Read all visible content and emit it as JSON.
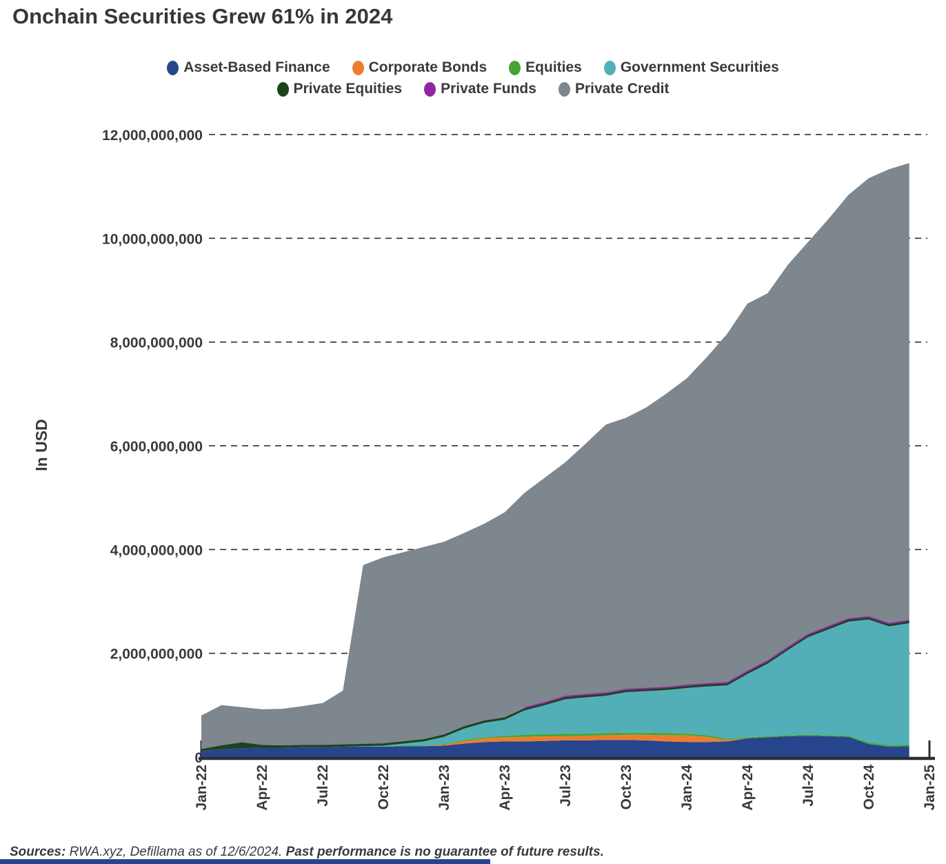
{
  "title": "Onchain Securities Grew 61% in 2024",
  "legend": {
    "rows": [
      [
        {
          "label": "Asset-Based Finance",
          "color": "#26458c"
        },
        {
          "label": "Corporate Bonds",
          "color": "#ec7d2e"
        },
        {
          "label": "Equities",
          "color": "#44a42f"
        },
        {
          "label": "Government Securities",
          "color": "#52afb8"
        }
      ],
      [
        {
          "label": "Private Equities",
          "color": "#1d431e"
        },
        {
          "label": "Private Funds",
          "color": "#8f27a0"
        },
        {
          "label": "Private Credit",
          "color": "#7e868e"
        }
      ]
    ]
  },
  "y_axis": {
    "title": "In USD",
    "tick_values_billions": [
      0,
      2,
      4,
      6,
      8,
      10,
      12
    ],
    "tick_labels": [
      "0",
      "2,000,000,000",
      "4,000,000,000",
      "6,000,000,000",
      "8,000,000,000",
      "10,000,000,000",
      "12,000,000,000"
    ]
  },
  "x_axis": {
    "tick_labels": [
      "Jan-22",
      "Apr-22",
      "Jul-22",
      "Oct-22",
      "Jan-23",
      "Apr-23",
      "Jul-23",
      "Oct-23",
      "Jan-24",
      "Apr-24",
      "Jul-24",
      "Oct-24",
      "Jan-25"
    ]
  },
  "footer": {
    "sources_label": "Sources:",
    "sources_text": " RWA.xyz, Defillama as of 12/6/2024. ",
    "disclaimer": "Past performance is no guarantee of future results."
  },
  "chart_data": {
    "type": "area",
    "stacked": true,
    "unit": "USD billions",
    "title": "Onchain Securities Grew 61% in 2024",
    "ylabel": "In USD",
    "ylim_billions": [
      0,
      12
    ],
    "grid": "horizontal-dashed",
    "legend_position": "top-center",
    "x": [
      "Jan-22",
      "Feb-22",
      "Mar-22",
      "Apr-22",
      "May-22",
      "Jun-22",
      "Jul-22",
      "Aug-22",
      "Sep-22",
      "Oct-22",
      "Nov-22",
      "Dec-22",
      "Jan-23",
      "Feb-23",
      "Mar-23",
      "Apr-23",
      "May-23",
      "Jun-23",
      "Jul-23",
      "Aug-23",
      "Sep-23",
      "Oct-23",
      "Nov-23",
      "Dec-23",
      "Jan-24",
      "Feb-24",
      "Mar-24",
      "Apr-24",
      "May-24",
      "Jun-24",
      "Jul-24",
      "Aug-24",
      "Sep-24",
      "Oct-24",
      "Nov-24",
      "Dec-24"
    ],
    "series": [
      {
        "name": "Asset-Based Finance",
        "color": "#26458c",
        "outline": false,
        "values": [
          0.12,
          0.15,
          0.17,
          0.18,
          0.18,
          0.19,
          0.19,
          0.2,
          0.2,
          0.2,
          0.21,
          0.21,
          0.22,
          0.26,
          0.29,
          0.3,
          0.3,
          0.31,
          0.32,
          0.32,
          0.33,
          0.33,
          0.32,
          0.3,
          0.29,
          0.29,
          0.3,
          0.36,
          0.38,
          0.4,
          0.41,
          0.4,
          0.39,
          0.25,
          0.2,
          0.21
        ]
      },
      {
        "name": "Corporate Bonds",
        "color": "#ec7d2e",
        "outline": false,
        "values": [
          0,
          0,
          0,
          0,
          0,
          0,
          0,
          0,
          0,
          0,
          0,
          0,
          0.02,
          0.05,
          0.07,
          0.08,
          0.09,
          0.09,
          0.08,
          0.09,
          0.09,
          0.1,
          0.11,
          0.12,
          0.13,
          0.1,
          0.03,
          0,
          0,
          0,
          0,
          0,
          0,
          0,
          0,
          0
        ]
      },
      {
        "name": "Equities",
        "color": "#44a42f",
        "outline": false,
        "values": [
          0,
          0,
          0,
          0,
          0,
          0,
          0,
          0,
          0,
          0,
          0.01,
          0.01,
          0.01,
          0.02,
          0.02,
          0.03,
          0.04,
          0.04,
          0.045,
          0.04,
          0.04,
          0.04,
          0.04,
          0.04,
          0.03,
          0.03,
          0.02,
          0.02,
          0.02,
          0.02,
          0.02,
          0.02,
          0.02,
          0.03,
          0.03,
          0.03
        ]
      },
      {
        "name": "Government Securities",
        "color": "#52afb8",
        "outline": false,
        "values": [
          0,
          0,
          0,
          0,
          0,
          0,
          0,
          0,
          0.01,
          0.02,
          0.04,
          0.08,
          0.14,
          0.22,
          0.28,
          0.31,
          0.47,
          0.56,
          0.67,
          0.7,
          0.72,
          0.78,
          0.8,
          0.83,
          0.88,
          0.94,
          1.03,
          1.22,
          1.4,
          1.64,
          1.88,
          2.04,
          2.2,
          2.37,
          2.29,
          2.34
        ]
      },
      {
        "name": "Private Equities",
        "color": "#1d431e",
        "outline": true,
        "values": [
          0.02,
          0.06,
          0.1,
          0.04,
          0.03,
          0.03,
          0.03,
          0.03,
          0.03,
          0.03,
          0.03,
          0.03,
          0.03,
          0.03,
          0.03,
          0.03,
          0.03,
          0.03,
          0.03,
          0.03,
          0.03,
          0.03,
          0.03,
          0.03,
          0.03,
          0.03,
          0.03,
          0.03,
          0.03,
          0.03,
          0.03,
          0.03,
          0.03,
          0.03,
          0.03,
          0.03
        ]
      },
      {
        "name": "Private Funds",
        "color": "#8f27a0",
        "outline": true,
        "values": [
          0,
          0,
          0,
          0,
          0,
          0,
          0,
          0,
          0,
          0,
          0,
          0,
          0,
          0,
          0,
          0,
          0.02,
          0.02,
          0.02,
          0.02,
          0.02,
          0.02,
          0.02,
          0.02,
          0.02,
          0.02,
          0.02,
          0.02,
          0.02,
          0.02,
          0.02,
          0.02,
          0.02,
          0.02,
          0.02,
          0.02
        ]
      },
      {
        "name": "Private Credit",
        "color": "#7e868e",
        "outline": false,
        "values": [
          0.66,
          0.79,
          0.69,
          0.7,
          0.72,
          0.76,
          0.82,
          1.05,
          3.46,
          3.6,
          3.66,
          3.72,
          3.73,
          3.74,
          3.81,
          3.97,
          4.15,
          4.34,
          4.52,
          4.84,
          5.18,
          5.24,
          5.42,
          5.67,
          5.92,
          6.3,
          6.73,
          7.09,
          7.09,
          7.38,
          7.57,
          7.86,
          8.18,
          8.46,
          8.76,
          8.82
        ]
      }
    ],
    "totals_billions": [
      0.8,
      1.0,
      0.96,
      0.92,
      0.93,
      0.98,
      1.04,
      1.28,
      3.7,
      3.85,
      3.95,
      4.05,
      4.15,
      4.32,
      4.5,
      4.72,
      5.1,
      5.39,
      5.68,
      6.04,
      6.41,
      6.54,
      6.74,
      7.01,
      7.3,
      7.71,
      8.16,
      8.74,
      8.94,
      9.49,
      9.93,
      10.37,
      10.84,
      11.16,
      11.33,
      11.45
    ]
  }
}
